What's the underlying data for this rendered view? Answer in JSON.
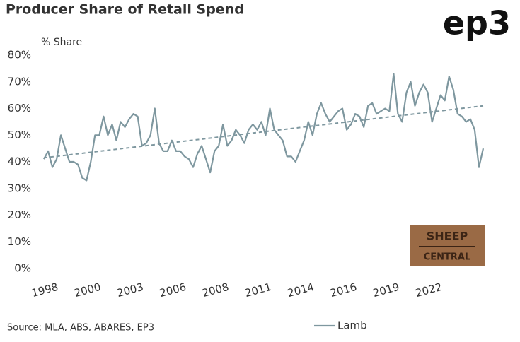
{
  "chart_data": {
    "type": "line",
    "title": "Producer Share of Retail Spend",
    "y_label": "% Share",
    "source": "Source: MLA, ABS, ABARES, EP3",
    "brand": "ep3",
    "badge": [
      "SHEEP",
      "CENTRAL"
    ],
    "categories": [
      "1998",
      null,
      null,
      null,
      null,
      null,
      null,
      null,
      null,
      null,
      "2000",
      null,
      null,
      null,
      null,
      null,
      null,
      null,
      null,
      null,
      "2003",
      null,
      null,
      null,
      null,
      null,
      null,
      null,
      null,
      null,
      "2006",
      null,
      null,
      null,
      null,
      null,
      null,
      null,
      null,
      null,
      "2008",
      null,
      null,
      null,
      null,
      null,
      null,
      null,
      null,
      null,
      "2011",
      null,
      null,
      null,
      null,
      null,
      null,
      null,
      null,
      null,
      "2014",
      null,
      null,
      null,
      null,
      null,
      null,
      null,
      null,
      null,
      "2016",
      null,
      null,
      null,
      null,
      null,
      null,
      null,
      null,
      null,
      "2019",
      null,
      null,
      null,
      null,
      null,
      null,
      null,
      null,
      null,
      "2022",
      null,
      null,
      null,
      null,
      null,
      null,
      null,
      null,
      null,
      null,
      null,
      null,
      null
    ],
    "series": [
      {
        "name": "Lamb",
        "color": "#7e979f",
        "values": [
          41,
          44,
          38,
          41,
          50,
          45,
          40,
          40,
          39,
          34,
          33,
          40,
          50,
          50,
          57,
          50,
          54,
          48,
          55,
          53,
          56,
          58,
          57,
          46,
          47,
          50,
          60,
          47,
          44,
          44,
          48,
          44,
          44,
          42,
          41,
          38,
          43,
          46,
          41,
          36,
          44,
          46,
          54,
          46,
          48,
          52,
          50,
          47,
          52,
          54,
          52,
          55,
          50,
          60,
          52,
          50,
          48,
          42,
          42,
          40,
          44,
          48,
          55,
          50,
          58,
          62,
          58,
          55,
          57,
          59,
          60,
          52,
          54,
          58,
          57,
          53,
          61,
          62,
          58,
          59,
          60,
          59,
          73,
          58,
          55,
          66,
          70,
          61,
          66,
          69,
          66,
          55,
          60,
          65,
          63,
          72,
          67,
          58,
          57,
          55,
          56,
          52,
          38,
          45
        ]
      }
    ],
    "trendline": [
      41.5,
      61
    ],
    "trend_color": "#7e979f",
    "ylim": [
      0,
      80
    ],
    "yticks": [
      {
        "value": 0,
        "label": "0%"
      },
      {
        "value": 10,
        "label": "10%"
      },
      {
        "value": 20,
        "label": "20%"
      },
      {
        "value": 30,
        "label": "30%"
      },
      {
        "value": 40,
        "label": "40%"
      },
      {
        "value": 50,
        "label": "50%"
      },
      {
        "value": 60,
        "label": "60%"
      },
      {
        "value": 70,
        "label": "70%"
      },
      {
        "value": 80,
        "label": "80%"
      }
    ],
    "grid": false,
    "legend": "bottom"
  }
}
